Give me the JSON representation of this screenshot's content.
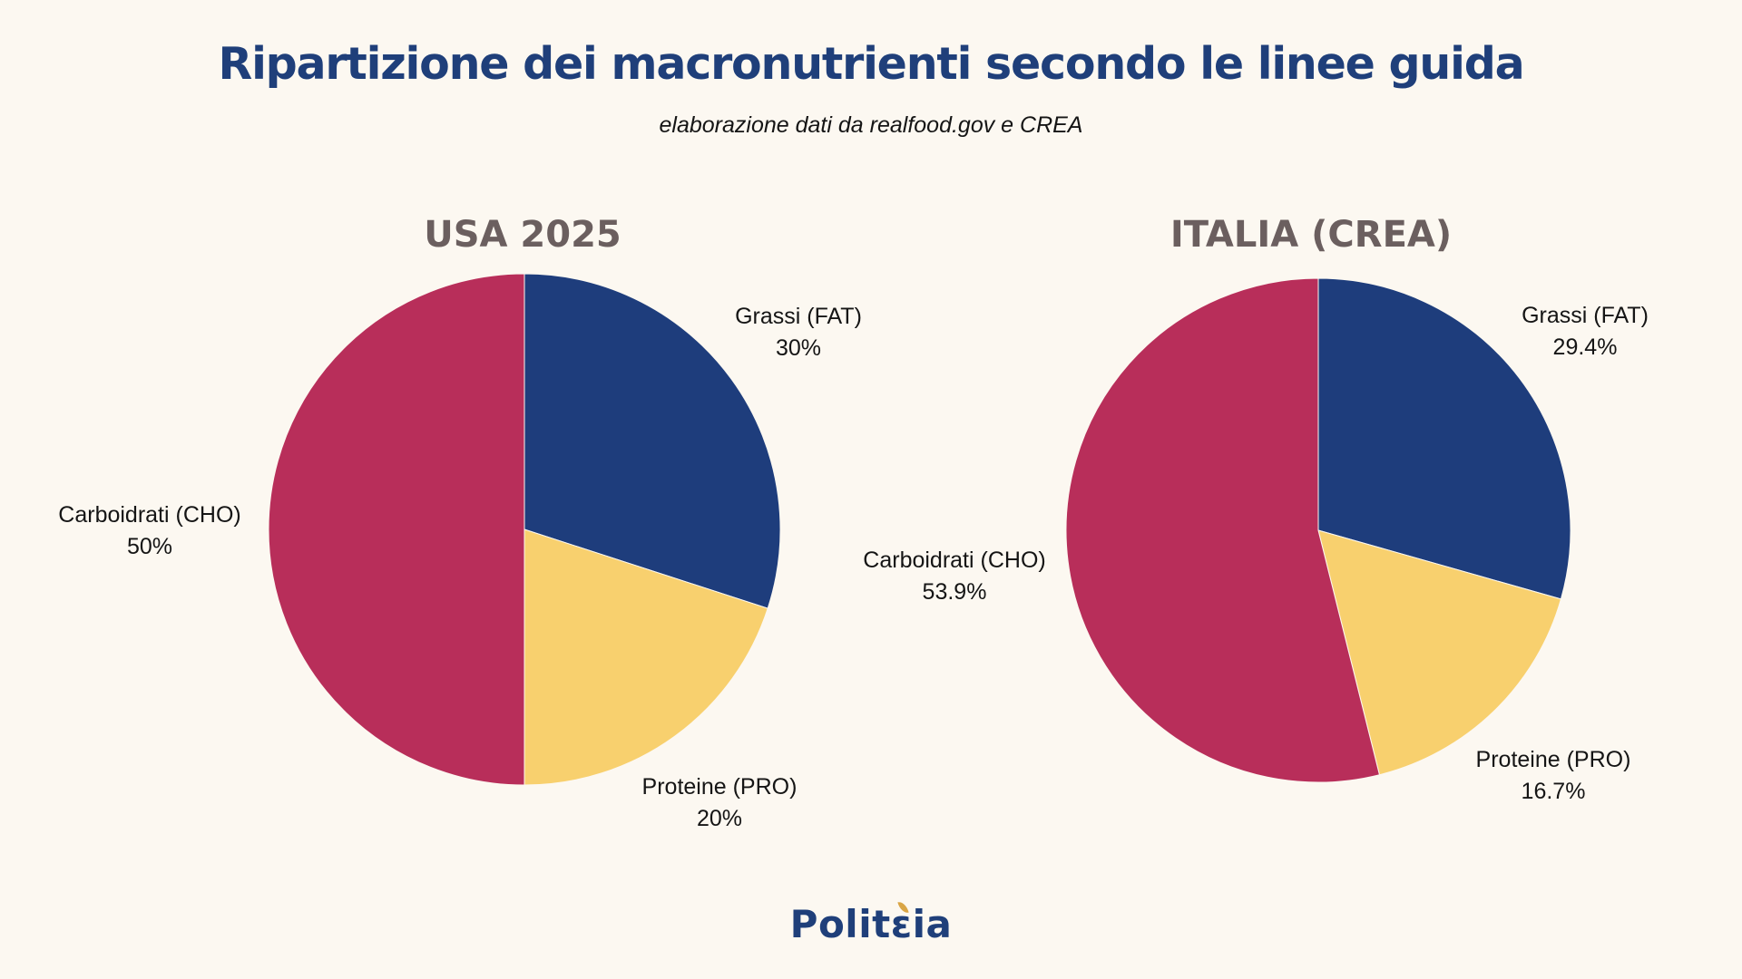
{
  "header": {
    "title": "Ripartizione dei macronutrienti secondo le linee guida",
    "subtitle": "elaborazione dati da realfood.gov e CREA"
  },
  "footer": {
    "logo_prefix": "Polit",
    "logo_special": "ε",
    "logo_suffix": "ia",
    "logo_color": "#1f3f7a",
    "leaf_color": "#d9a545"
  },
  "colors": {
    "background": "#fcf8f1",
    "chart_title": "#6b5f5f",
    "label_text": "#151515"
  },
  "chart_data": [
    {
      "type": "pie",
      "title": "USA 2025",
      "start_angle_deg": 0,
      "direction": "clockwise",
      "slices": [
        {
          "label": "Grassi (FAT)",
          "value": 30,
          "display": "30%",
          "color": "#1e3d7c"
        },
        {
          "label": "Proteine (PRO)",
          "value": 20,
          "display": "20%",
          "color": "#f8d06e"
        },
        {
          "label": "Carboidrati (CHO)",
          "value": 50,
          "display": "50%",
          "color": "#b82e5a"
        }
      ]
    },
    {
      "type": "pie",
      "title": "ITALIA (CREA)",
      "start_angle_deg": 0,
      "direction": "clockwise",
      "slices": [
        {
          "label": "Grassi (FAT)",
          "value": 29.4,
          "display": "29.4%",
          "color": "#1e3d7c"
        },
        {
          "label": "Proteine (PRO)",
          "value": 16.7,
          "display": "16.7%",
          "color": "#f8d06e"
        },
        {
          "label": "Carboidrati (CHO)",
          "value": 53.9,
          "display": "53.9%",
          "color": "#b82e5a"
        }
      ]
    }
  ]
}
